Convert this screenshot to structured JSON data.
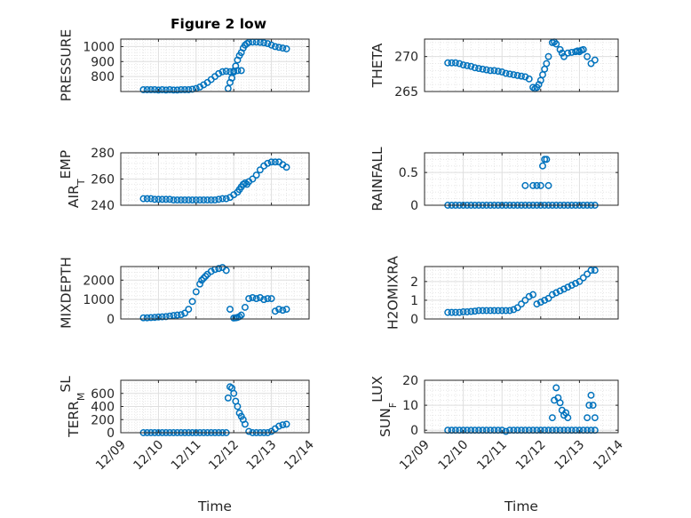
{
  "figure": {
    "title": "Figure 2 low"
  },
  "colors": {
    "marker": "#0072BD",
    "grid": "#dfdfdf",
    "axis": "#262626"
  },
  "chart_data": [
    {
      "id": "pressure",
      "type": "scatter",
      "ylabel": "PRESSURE",
      "ylim": [
        700,
        1050
      ],
      "yticks": [
        800,
        900,
        1000
      ],
      "ytick_labels": [
        "800",
        "900",
        "1000"
      ],
      "xticks": [
        "12/09",
        "12/10",
        "12/11",
        "12/12",
        "12/13",
        "12/14"
      ],
      "xlabel": "",
      "grid": true,
      "x": [
        0.6,
        0.7,
        0.8,
        0.9,
        1.0,
        1.1,
        1.2,
        1.3,
        1.4,
        1.5,
        1.6,
        1.7,
        1.8,
        1.9,
        2.0,
        2.1,
        2.2,
        2.3,
        2.4,
        2.5,
        2.6,
        2.7,
        2.8,
        2.9,
        3.0,
        3.1,
        3.2,
        2.85,
        2.9,
        2.95,
        3.0,
        3.05,
        3.1,
        3.15,
        3.2,
        3.25,
        3.3,
        3.35,
        3.4,
        3.5,
        3.6,
        3.7,
        3.8,
        3.9,
        4.0,
        4.1,
        4.2,
        4.3,
        4.4
      ],
      "y": [
        712,
        712,
        712,
        712,
        710,
        712,
        710,
        712,
        710,
        710,
        712,
        712,
        712,
        715,
        720,
        730,
        745,
        760,
        780,
        800,
        820,
        832,
        835,
        832,
        837,
        840,
        840,
        720,
        760,
        790,
        830,
        870,
        910,
        940,
        960,
        990,
        1010,
        1020,
        1028,
        1030,
        1030,
        1028,
        1025,
        1020,
        1010,
        1000,
        995,
        990,
        985
      ]
    },
    {
      "id": "theta",
      "type": "scatter",
      "ylabel": "THETA",
      "ylim": [
        265,
        272.5
      ],
      "yticks": [
        265,
        270
      ],
      "ytick_labels": [
        "265",
        "270"
      ],
      "xticks": [
        "12/09",
        "12/10",
        "12/11",
        "12/12",
        "12/13",
        "12/14"
      ],
      "xlabel": "",
      "grid": true,
      "x": [
        0.6,
        0.7,
        0.8,
        0.9,
        1.0,
        1.1,
        1.2,
        1.3,
        1.4,
        1.5,
        1.6,
        1.7,
        1.8,
        1.9,
        2.0,
        2.1,
        2.2,
        2.3,
        2.4,
        2.5,
        2.6,
        2.7,
        2.8,
        2.85,
        2.9,
        2.95,
        3.0,
        3.05,
        3.1,
        3.15,
        3.2,
        3.3,
        3.35,
        3.4,
        3.5,
        3.55,
        3.6,
        3.7,
        3.8,
        3.9,
        3.95,
        4.0,
        4.05,
        4.1,
        4.2,
        4.3,
        4.4
      ],
      "y": [
        269.1,
        269.1,
        269.1,
        269.0,
        268.8,
        268.7,
        268.6,
        268.4,
        268.3,
        268.2,
        268.1,
        268.0,
        268.0,
        267.9,
        267.8,
        267.6,
        267.5,
        267.4,
        267.3,
        267.2,
        267.1,
        266.8,
        265.6,
        265.4,
        265.6,
        266.0,
        266.6,
        267.4,
        268.2,
        269.0,
        270.0,
        272.0,
        272.1,
        271.8,
        271.0,
        270.5,
        270.0,
        270.5,
        270.6,
        270.7,
        270.8,
        270.7,
        270.9,
        271.0,
        270.0,
        269.0,
        269.5
      ]
    },
    {
      "id": "airtemp",
      "type": "scatter",
      "ylabel": "AIR_TEMP",
      "ylim": [
        240,
        280
      ],
      "yticks": [
        240,
        260,
        280
      ],
      "ytick_labels": [
        "240",
        "260",
        "280"
      ],
      "xticks": [
        "12/09",
        "12/10",
        "12/11",
        "12/12",
        "12/13",
        "12/14"
      ],
      "xlabel": "",
      "grid": true,
      "x": [
        0.6,
        0.7,
        0.8,
        0.9,
        1.0,
        1.1,
        1.2,
        1.3,
        1.4,
        1.5,
        1.6,
        1.7,
        1.8,
        1.9,
        2.0,
        2.1,
        2.2,
        2.3,
        2.4,
        2.5,
        2.6,
        2.7,
        2.8,
        2.9,
        3.0,
        3.1,
        3.15,
        3.2,
        3.25,
        3.3,
        3.35,
        3.4,
        3.5,
        3.6,
        3.7,
        3.8,
        3.9,
        4.0,
        4.1,
        4.2,
        4.3,
        4.4
      ],
      "y": [
        245,
        245,
        245,
        244.5,
        244.5,
        244.5,
        244.5,
        244.5,
        244,
        244,
        244,
        244,
        244,
        244,
        244,
        244,
        244,
        244,
        244,
        244,
        244.5,
        245,
        245,
        246,
        248,
        250,
        252,
        254,
        256,
        257,
        256,
        258,
        260,
        263,
        267,
        270,
        272,
        273,
        273,
        273,
        271,
        269
      ]
    },
    {
      "id": "rainfall",
      "type": "scatter",
      "ylabel": "RAINFALL",
      "ylim": [
        0,
        0.8
      ],
      "yticks": [
        0,
        0.5
      ],
      "ytick_labels": [
        "0",
        "0.5"
      ],
      "xticks": [
        "12/09",
        "12/10",
        "12/11",
        "12/12",
        "12/13",
        "12/14"
      ],
      "xlabel": "",
      "grid": true,
      "x": [
        0.6,
        0.7,
        0.8,
        0.9,
        1.0,
        1.1,
        1.2,
        1.3,
        1.4,
        1.5,
        1.6,
        1.7,
        1.8,
        1.9,
        2.0,
        2.1,
        2.2,
        2.3,
        2.4,
        2.5,
        2.6,
        2.7,
        2.8,
        2.9,
        3.0,
        3.1,
        3.2,
        3.3,
        3.4,
        3.5,
        3.6,
        3.7,
        3.8,
        3.9,
        4.0,
        4.1,
        4.2,
        4.3,
        4.4,
        2.6,
        2.8,
        2.9,
        3.0,
        3.05,
        3.1,
        3.15,
        3.2
      ],
      "y": [
        0,
        0,
        0,
        0,
        0,
        0,
        0,
        0,
        0,
        0,
        0,
        0,
        0,
        0,
        0,
        0,
        0,
        0,
        0,
        0,
        0,
        0,
        0,
        0,
        0,
        0,
        0,
        0,
        0,
        0,
        0,
        0,
        0,
        0,
        0,
        0,
        0,
        0,
        0,
        0.3,
        0.3,
        0.3,
        0.3,
        0.6,
        0.7,
        0.7,
        0.3
      ]
    },
    {
      "id": "mixdepth",
      "type": "scatter",
      "ylabel": "MIXDEPTH",
      "ylim": [
        0,
        2700
      ],
      "yticks": [
        0,
        1000,
        2000
      ],
      "ytick_labels": [
        "0",
        "1000",
        "2000"
      ],
      "xticks": [
        "12/09",
        "12/10",
        "12/11",
        "12/12",
        "12/13",
        "12/14"
      ],
      "xlabel": "",
      "grid": true,
      "x": [
        0.6,
        0.7,
        0.8,
        0.9,
        1.0,
        1.1,
        1.2,
        1.3,
        1.4,
        1.5,
        1.6,
        1.7,
        1.8,
        1.9,
        2.0,
        2.1,
        2.15,
        2.2,
        2.25,
        2.3,
        2.4,
        2.5,
        2.6,
        2.7,
        2.8,
        2.9,
        3.0,
        3.05,
        3.1,
        3.15,
        3.2,
        3.3,
        3.4,
        3.5,
        3.6,
        3.7,
        3.8,
        3.9,
        4.0,
        4.1,
        4.2,
        4.3,
        4.4
      ],
      "y": [
        60,
        60,
        70,
        80,
        100,
        110,
        120,
        150,
        180,
        200,
        220,
        300,
        500,
        900,
        1400,
        1800,
        2000,
        2100,
        2200,
        2300,
        2450,
        2550,
        2600,
        2650,
        2500,
        500,
        50,
        60,
        80,
        120,
        200,
        600,
        1050,
        1100,
        1050,
        1100,
        1000,
        1050,
        1050,
        400,
        500,
        450,
        500
      ]
    },
    {
      "id": "h2omixra",
      "type": "scatter",
      "ylabel": "H2OMIXRA",
      "ylim": [
        0,
        2.8
      ],
      "yticks": [
        0,
        1,
        2
      ],
      "ytick_labels": [
        "0",
        "1",
        "2"
      ],
      "xticks": [
        "12/09",
        "12/10",
        "12/11",
        "12/12",
        "12/13",
        "12/14"
      ],
      "xlabel": "",
      "grid": true,
      "x": [
        0.6,
        0.7,
        0.8,
        0.9,
        1.0,
        1.1,
        1.2,
        1.3,
        1.4,
        1.5,
        1.6,
        1.7,
        1.8,
        1.9,
        2.0,
        2.1,
        2.2,
        2.3,
        2.4,
        2.5,
        2.6,
        2.7,
        2.8,
        2.9,
        3.0,
        3.1,
        3.2,
        3.3,
        3.4,
        3.5,
        3.6,
        3.7,
        3.8,
        3.9,
        4.0,
        4.1,
        4.2,
        4.3,
        4.4
      ],
      "y": [
        0.35,
        0.35,
        0.35,
        0.35,
        0.38,
        0.38,
        0.4,
        0.42,
        0.45,
        0.45,
        0.45,
        0.45,
        0.45,
        0.45,
        0.45,
        0.45,
        0.45,
        0.5,
        0.6,
        0.8,
        1.0,
        1.2,
        1.3,
        0.8,
        0.9,
        1.0,
        1.1,
        1.3,
        1.4,
        1.5,
        1.6,
        1.7,
        1.8,
        1.9,
        2.0,
        2.2,
        2.4,
        2.6,
        2.6
      ]
    },
    {
      "id": "terr_msl",
      "type": "scatter",
      "ylabel": "TERR_MSL",
      "ylim": [
        0,
        800
      ],
      "yticks": [
        0,
        200,
        400,
        600
      ],
      "ytick_labels": [
        "0",
        "200",
        "400",
        "600"
      ],
      "xticks": [
        "12/09",
        "12/10",
        "12/11",
        "12/12",
        "12/13",
        "12/14"
      ],
      "xlabel": "Time",
      "grid": true,
      "x": [
        0.6,
        0.7,
        0.8,
        0.9,
        1.0,
        1.1,
        1.2,
        1.3,
        1.4,
        1.5,
        1.6,
        1.7,
        1.8,
        1.9,
        2.0,
        2.1,
        2.2,
        2.3,
        2.4,
        2.5,
        2.6,
        2.7,
        2.8,
        2.85,
        2.9,
        2.95,
        3.0,
        3.05,
        3.1,
        3.15,
        3.2,
        3.25,
        3.3,
        3.4,
        3.5,
        3.6,
        3.7,
        3.8,
        3.9,
        4.0,
        4.1,
        4.2,
        4.3,
        4.4
      ],
      "y": [
        0,
        0,
        0,
        0,
        0,
        0,
        0,
        0,
        0,
        0,
        0,
        0,
        0,
        0,
        0,
        0,
        0,
        0,
        0,
        0,
        0,
        0,
        0,
        530,
        700,
        680,
        600,
        480,
        400,
        300,
        250,
        200,
        130,
        20,
        0,
        0,
        0,
        0,
        0,
        20,
        60,
        100,
        120,
        130
      ]
    },
    {
      "id": "sun_flux",
      "type": "scatter",
      "ylabel": "SUN_FLUX",
      "ylim": [
        -1,
        20
      ],
      "yticks": [
        0,
        10,
        20
      ],
      "ytick_labels": [
        "0",
        "10",
        "20"
      ],
      "xticks": [
        "12/09",
        "12/10",
        "12/11",
        "12/12",
        "12/13",
        "12/14"
      ],
      "xlabel": "Time",
      "grid": true,
      "x": [
        0.6,
        0.7,
        0.8,
        0.9,
        1.0,
        1.1,
        1.2,
        1.3,
        1.4,
        1.5,
        1.6,
        1.7,
        1.8,
        1.9,
        2.0,
        2.1,
        2.2,
        2.3,
        2.4,
        2.5,
        2.6,
        2.7,
        2.8,
        2.9,
        3.0,
        3.1,
        3.2,
        3.3,
        3.4,
        3.5,
        3.6,
        3.7,
        3.8,
        3.9,
        4.0,
        4.1,
        4.2,
        4.3,
        4.4,
        3.3,
        3.35,
        3.4,
        3.45,
        3.5,
        3.55,
        3.6,
        3.65,
        3.7,
        4.2,
        4.25,
        4.3,
        4.35,
        4.4
      ],
      "y": [
        0,
        0,
        0,
        0,
        0,
        0,
        0,
        0,
        0,
        0,
        0,
        0,
        0,
        0,
        0,
        -0.5,
        0,
        0,
        0,
        0,
        0,
        0,
        0,
        0,
        0,
        0,
        0,
        0,
        0,
        0,
        0,
        0,
        0,
        0,
        0,
        0,
        0,
        0,
        0,
        5,
        12,
        17,
        13,
        11,
        8,
        6,
        7,
        5,
        5,
        10,
        14,
        10,
        5
      ]
    }
  ]
}
